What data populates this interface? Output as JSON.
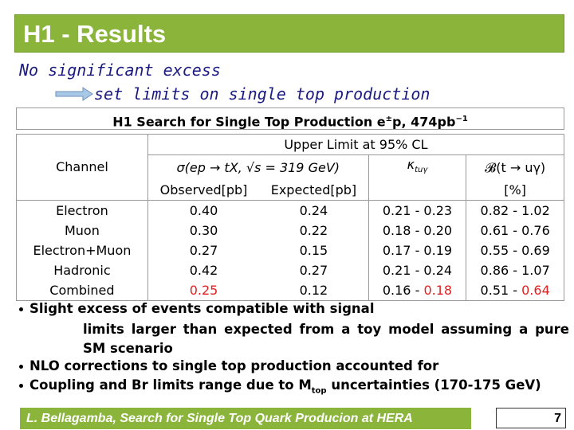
{
  "header": {
    "title": "H1 - Results"
  },
  "intro": {
    "line1": "No significant excess",
    "line2": "set limits on single top production"
  },
  "table": {
    "title": [
      "H1 Search for Single Top Production e",
      {
        "sup": "±"
      },
      "p, 474pb",
      {
        "sup": "−1"
      }
    ],
    "head": {
      "channel": "Channel",
      "upper": "Upper Limit at 95% CL",
      "sigma": "σ(ep → tX, √s = 319 GeV)",
      "kappa": [
        "κ",
        {
          "sub": "tuγ"
        }
      ],
      "br": "𝓑(t → uγ)",
      "observed": "Observed[pb]",
      "expected": "Expected[pb]",
      "percent": "[%]"
    },
    "rows": [
      [
        "Electron",
        "0.40",
        "0.24",
        "0.21 - 0.23",
        "0.82 - 1.02"
      ],
      [
        "Muon",
        "0.30",
        "0.22",
        "0.18 - 0.20",
        "0.61 - 0.76"
      ],
      [
        "Electron+Muon",
        "0.27",
        "0.15",
        "0.17 - 0.19",
        "0.55 - 0.69"
      ],
      [
        "Hadronic",
        "0.42",
        "0.27",
        "0.21 - 0.24",
        "0.86 - 1.07"
      ],
      [
        "Combined",
        [
          {
            "red": "0.25"
          }
        ],
        "0.12",
        [
          "0.16 - ",
          {
            "red": "0.18"
          }
        ],
        [
          "0.51 - ",
          {
            "red": "0.64"
          }
        ]
      ]
    ]
  },
  "bullets": [
    {
      "text": "Slight excess of events compatible with signal",
      "sub": "limits larger than expected from a toy model assuming a pure SM scenario"
    },
    {
      "text": "NLO corrections to single top production accounted for"
    },
    {
      "text": [
        "Coupling and Br limits range due to M",
        {
          "sub": "top"
        },
        " uncertainties (170-175 GeV)"
      ]
    }
  ],
  "footer": {
    "text": "L. Bellagamba, Search for Single Top Quark Producion at HERA",
    "page": "7"
  }
}
